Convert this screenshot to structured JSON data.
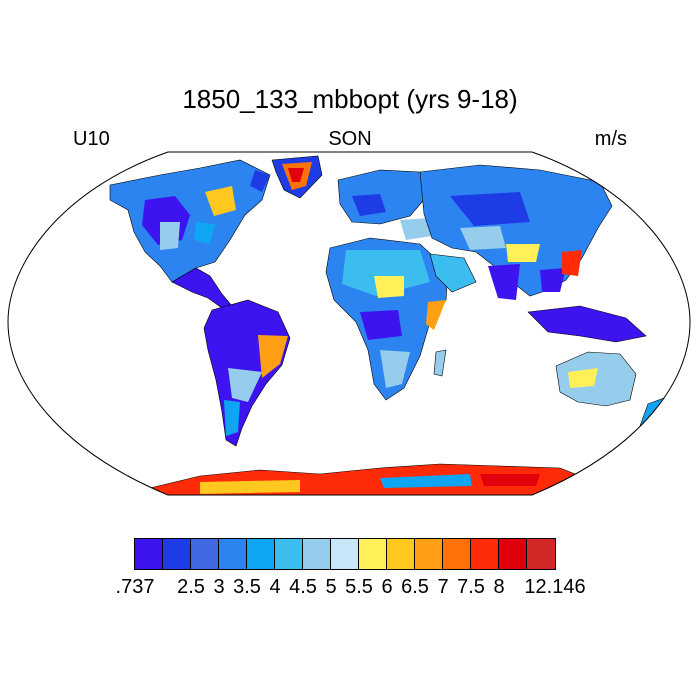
{
  "title": "1850_133_mbbopt (yrs 9-18)",
  "subtitle_left": "U10",
  "subtitle_center": "SON",
  "subtitle_right": "m/s",
  "colorbar": {
    "colors": [
      "#3d14f0",
      "#1e3ce6",
      "#4169e1",
      "#2b84f0",
      "#0ea5f2",
      "#3cbdf0",
      "#96ccec",
      "#c8e6f8",
      "#fff05a",
      "#ffc81e",
      "#ffa014",
      "#ff7208",
      "#ff2a08",
      "#e0000c",
      "#d22828"
    ],
    "labels": [
      {
        "text": ".737",
        "index": 0
      },
      {
        "text": "2.5",
        "index": 2
      },
      {
        "text": "3",
        "index": 3
      },
      {
        "text": "3.5",
        "index": 4
      },
      {
        "text": "4",
        "index": 5
      },
      {
        "text": "4.5",
        "index": 6
      },
      {
        "text": "5",
        "index": 7
      },
      {
        "text": "5.5",
        "index": 8
      },
      {
        "text": "6",
        "index": 9
      },
      {
        "text": "6.5",
        "index": 10
      },
      {
        "text": "7",
        "index": 11
      },
      {
        "text": "7.5",
        "index": 12
      },
      {
        "text": "8",
        "index": 13
      },
      {
        "text": "12.146",
        "index": 15
      }
    ]
  }
}
